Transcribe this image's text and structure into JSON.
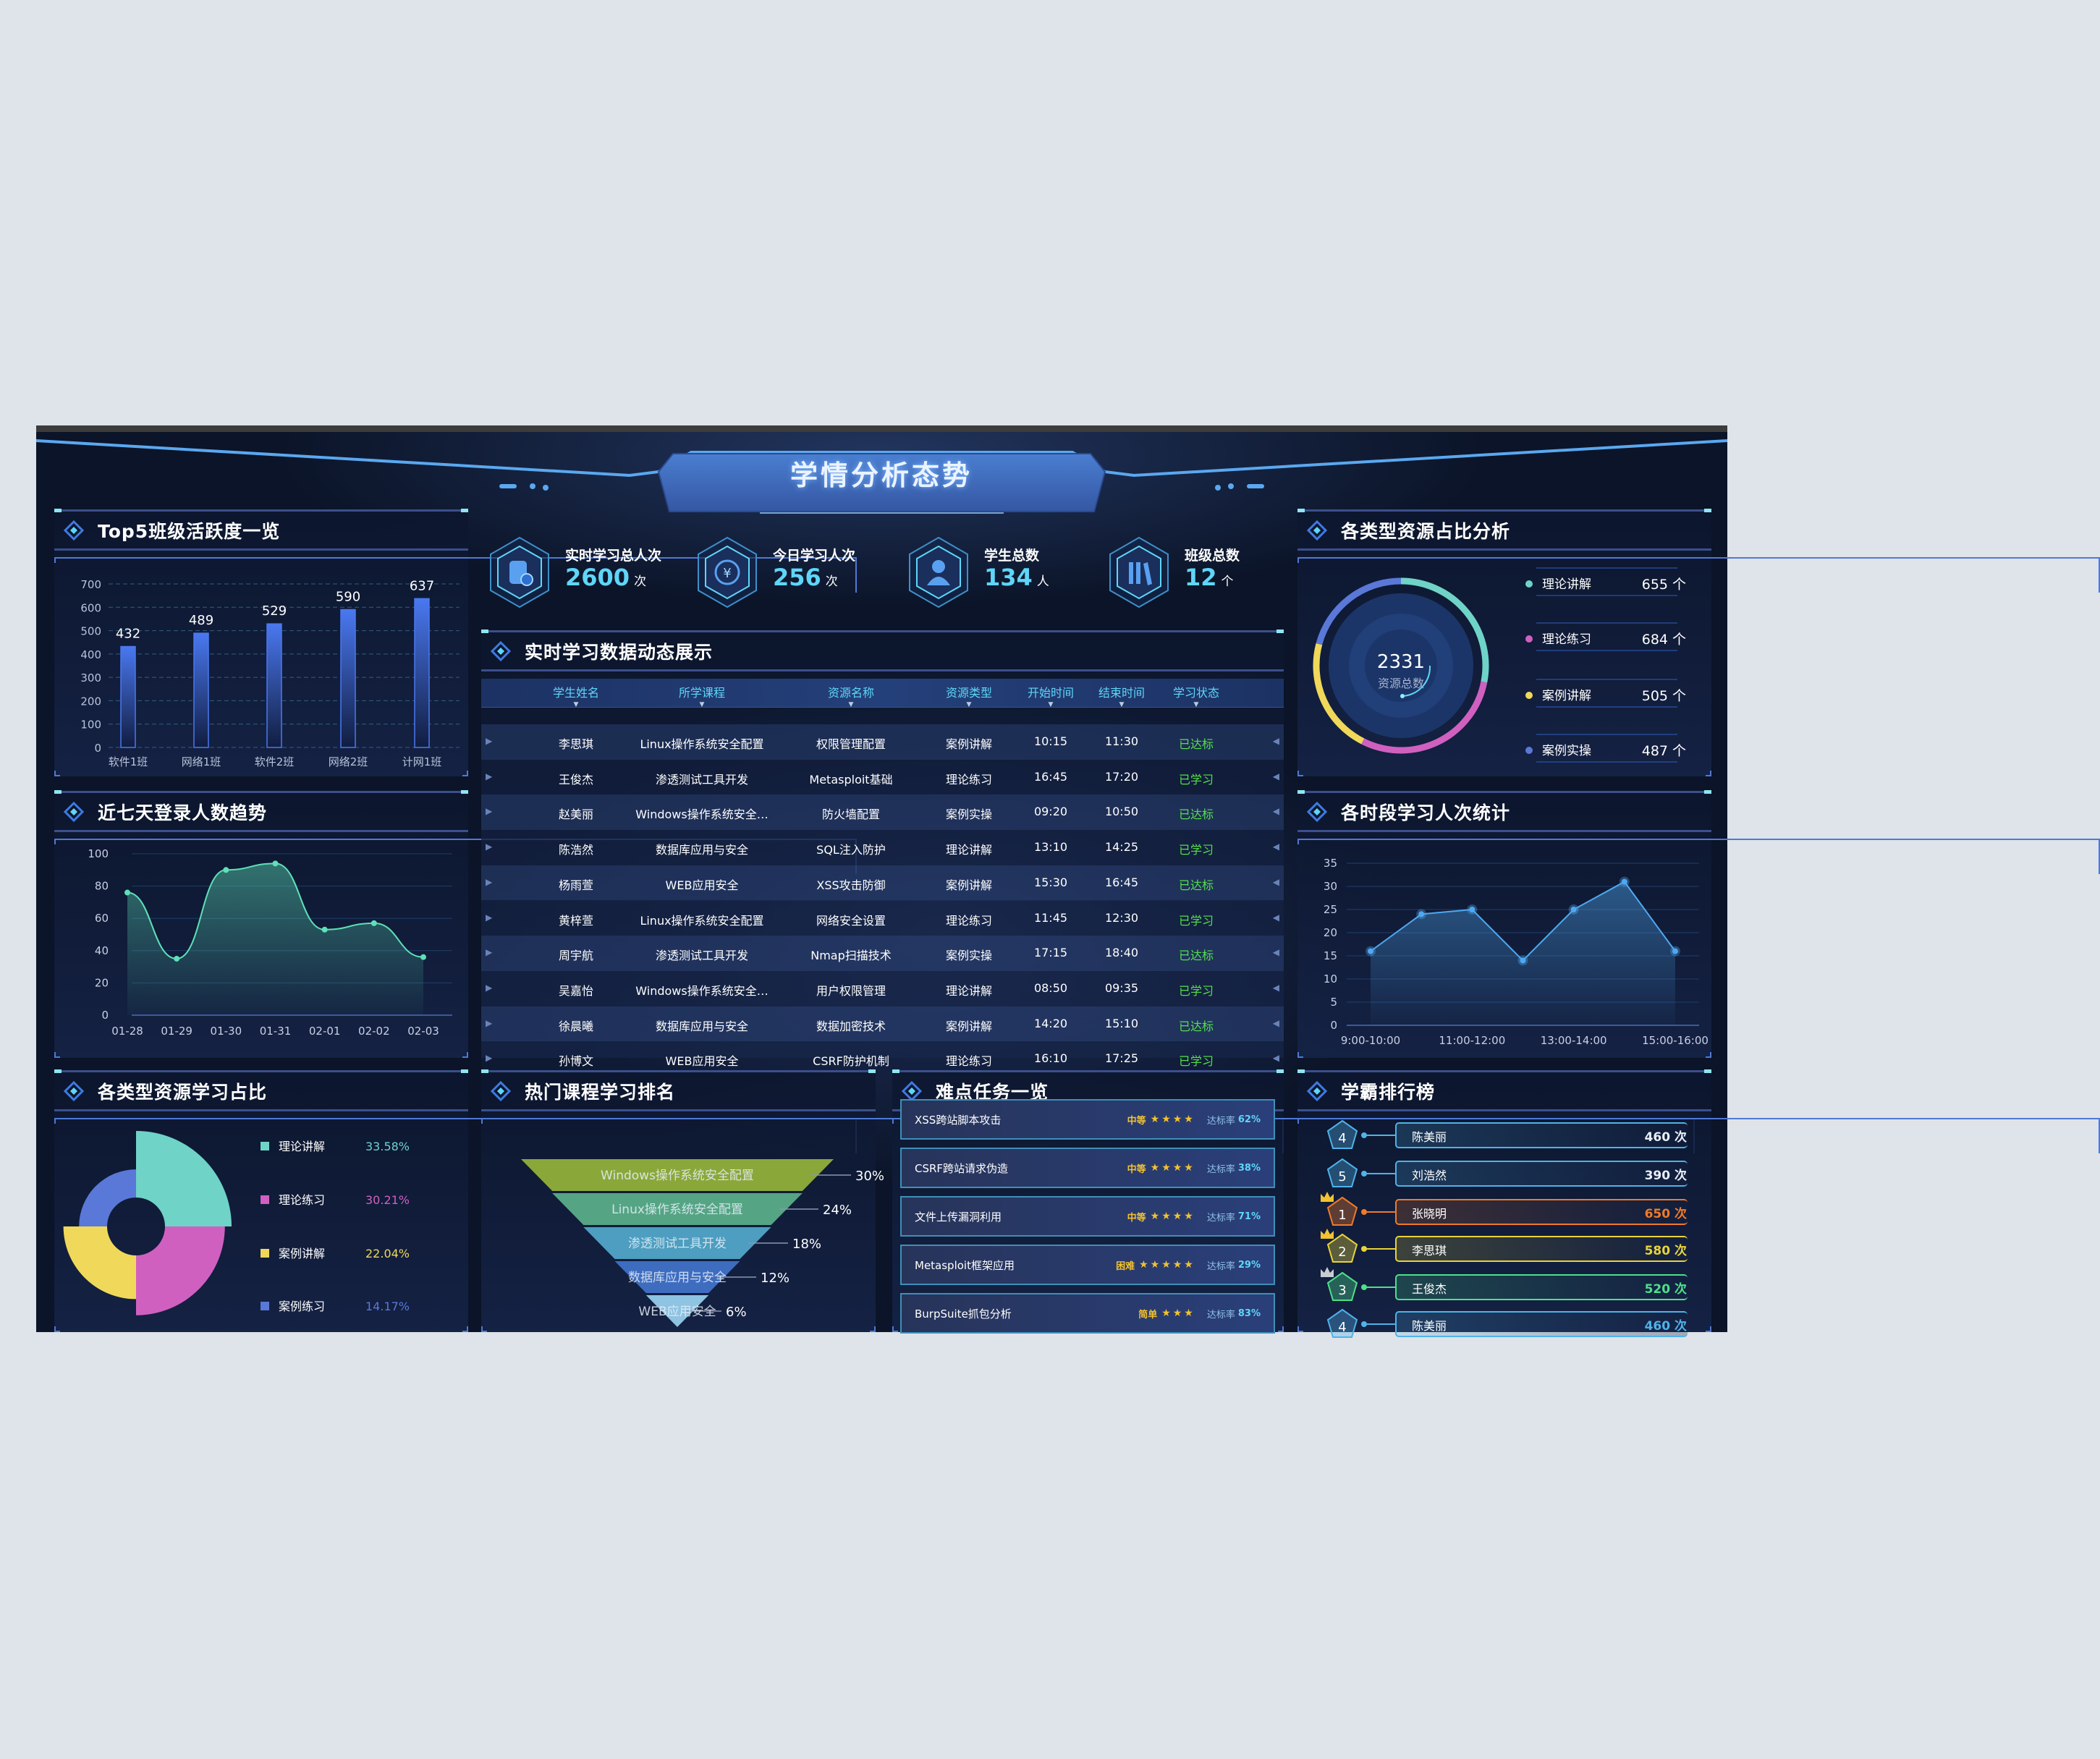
{
  "header": {
    "title": "学情分析态势"
  },
  "stats": [
    {
      "label": "实时学习总人次",
      "value": "2600",
      "unit": "次",
      "icon": "wallet-check-icon"
    },
    {
      "label": "今日学习人次",
      "value": "256",
      "unit": "次",
      "icon": "yuan-coin-icon"
    },
    {
      "label": "学生总数",
      "value": "134",
      "unit": "人",
      "icon": "user-icon"
    },
    {
      "label": "班级总数",
      "value": "12",
      "unit": "个",
      "icon": "books-icon"
    }
  ],
  "panels": {
    "top5": "Top5班级活跃度一览",
    "login": "近七天登录人数趋势",
    "pie": "各类型资源学习占比",
    "realtime": "实时学习数据动态展示",
    "funnel": "热门课程学习排名",
    "tasks": "难点任务一览",
    "resources": "各类型资源占比分析",
    "hours": "各时段学习人次统计",
    "rank": "学霸排行榜"
  },
  "colors": {
    "teal": "#6fd3c8",
    "pink": "#d060c0",
    "yellow": "#f0d85a",
    "blue": "#5a78d8",
    "accent": "#5fd6f8",
    "green": "#55e04a"
  },
  "chart_data": [
    {
      "type": "bar",
      "id": "top5",
      "categories": [
        "软件1班",
        "网络1班",
        "软件2班",
        "网络2班",
        "计网1班"
      ],
      "values": [
        432,
        489,
        529,
        590,
        637
      ],
      "ylim": [
        0,
        700
      ],
      "yticks": [
        0,
        100,
        200,
        300,
        400,
        500,
        600,
        700
      ],
      "grid": true
    },
    {
      "type": "area",
      "id": "login",
      "categories": [
        "01-28",
        "01-29",
        "01-30",
        "01-31",
        "02-01",
        "02-02",
        "02-03"
      ],
      "values": [
        76,
        35,
        90,
        94,
        53,
        57,
        36
      ],
      "ylim": [
        0,
        100
      ],
      "yticks": [
        0,
        20,
        40,
        60,
        80,
        100
      ],
      "smooth": true,
      "grid": true
    },
    {
      "type": "pie",
      "id": "pie",
      "rose": true,
      "categories": [
        "理论讲解",
        "理论练习",
        "案例讲解",
        "案例练习"
      ],
      "values": [
        33.58,
        30.21,
        22.04,
        14.17
      ],
      "labels": [
        "33.58%",
        "30.21%",
        "22.04%",
        "14.17%"
      ],
      "colors": [
        "#6fd3c8",
        "#d060c0",
        "#f0d85a",
        "#5a78d8"
      ],
      "legend": "right"
    },
    {
      "type": "funnel",
      "id": "funnel",
      "categories": [
        "Windows操作系统安全配置",
        "Linux操作系统安全配置",
        "渗透测试工具开发",
        "数据库应用与安全",
        "WEB应用安全"
      ],
      "values": [
        30,
        24,
        18,
        12,
        6
      ],
      "labels": [
        "30%",
        "24%",
        "18%",
        "12%",
        "6%"
      ],
      "colors": [
        "#8aa83a",
        "#55a585",
        "#4d9ec0",
        "#3e6dc0",
        "#8ec3e2"
      ]
    },
    {
      "type": "area",
      "id": "hours",
      "x_labels": [
        "9:00-10:00",
        "",
        "11:00-12:00",
        "",
        "13:00-14:00",
        "",
        "15:00-16:00"
      ],
      "values": [
        16,
        24,
        25,
        14,
        25,
        31,
        16
      ],
      "ylim": [
        0,
        35
      ],
      "yticks": [
        0,
        5,
        10,
        15,
        20,
        25,
        30,
        35
      ],
      "grid": true
    }
  ],
  "resources": {
    "total": "2331",
    "total_label": "资源总数",
    "items": [
      {
        "name": "理论讲解",
        "value": 655,
        "unit": "个",
        "color": "#6fd3c8"
      },
      {
        "name": "理论练习",
        "value": 684,
        "unit": "个",
        "color": "#d060c0"
      },
      {
        "name": "案例讲解",
        "value": 505,
        "unit": "个",
        "color": "#f0d85a"
      },
      {
        "name": "案例实操",
        "value": 487,
        "unit": "个",
        "color": "#5a78d8"
      }
    ]
  },
  "realtime": {
    "columns": [
      "学生姓名",
      "所学课程",
      "资源名称",
      "资源类型",
      "开始时间",
      "结束时间",
      "学习状态"
    ],
    "rows": [
      [
        "李思琪",
        "Linux操作系统安全配置",
        "权限管理配置",
        "案例讲解",
        "10:15",
        "11:30",
        "已达标"
      ],
      [
        "王俊杰",
        "渗透测试工具开发",
        "Metasploit基础",
        "理论练习",
        "16:45",
        "17:20",
        "已学习"
      ],
      [
        "赵美丽",
        "Windows操作系统安全…",
        "防火墙配置",
        "案例实操",
        "09:20",
        "10:50",
        "已达标"
      ],
      [
        "陈浩然",
        "数据库应用与安全",
        "SQL注入防护",
        "理论讲解",
        "13:10",
        "14:25",
        "已学习"
      ],
      [
        "杨雨萱",
        "WEB应用安全",
        "XSS攻击防御",
        "案例讲解",
        "15:30",
        "16:45",
        "已达标"
      ],
      [
        "黄梓萱",
        "Linux操作系统安全配置",
        "网络安全设置",
        "理论练习",
        "11:45",
        "12:30",
        "已学习"
      ],
      [
        "周宇航",
        "渗透测试工具开发",
        "Nmap扫描技术",
        "案例实操",
        "17:15",
        "18:40",
        "已达标"
      ],
      [
        "吴嘉怡",
        "Windows操作系统安全…",
        "用户权限管理",
        "理论讲解",
        "08:50",
        "09:35",
        "已学习"
      ],
      [
        "徐晨曦",
        "数据库应用与安全",
        "数据加密技术",
        "案例讲解",
        "14:20",
        "15:10",
        "已达标"
      ],
      [
        "孙博文",
        "WEB应用安全",
        "CSRF防护机制",
        "理论练习",
        "16:10",
        "17:25",
        "已学习"
      ]
    ]
  },
  "tasks": {
    "rate_label": "达标率",
    "items": [
      {
        "name": "XSS跨站脚本攻击",
        "level": "中等",
        "stars": 4,
        "rate": "62%"
      },
      {
        "name": "CSRF跨站请求伪造",
        "level": "中等",
        "stars": 4,
        "rate": "38%"
      },
      {
        "name": "文件上传漏洞利用",
        "level": "中等",
        "stars": 4,
        "rate": "71%"
      },
      {
        "name": "Metasploit框架应用",
        "level": "困难",
        "stars": 5,
        "rate": "29%"
      },
      {
        "name": "BurpSuite抓包分析",
        "level": "简单",
        "stars": 3,
        "rate": "83%"
      }
    ]
  },
  "ranking": {
    "unit": "次",
    "items": [
      {
        "rank": "4",
        "name": "陈美丽",
        "count": "460",
        "color": "#4fb3e8"
      },
      {
        "rank": "5",
        "name": "刘浩然",
        "count": "390",
        "color": "#4fb3e8"
      },
      {
        "rank": "1",
        "name": "张晓明",
        "count": "650",
        "color": "#f07a2a",
        "crown": "gold"
      },
      {
        "rank": "2",
        "name": "李思琪",
        "count": "580",
        "color": "#e8d33a",
        "crown": "gold"
      },
      {
        "rank": "3",
        "name": "王俊杰",
        "count": "520",
        "color": "#4ee08a",
        "crown": "silver"
      },
      {
        "rank": "4",
        "name": "陈美丽",
        "count": "460",
        "color": "#4fb3e8"
      }
    ]
  }
}
